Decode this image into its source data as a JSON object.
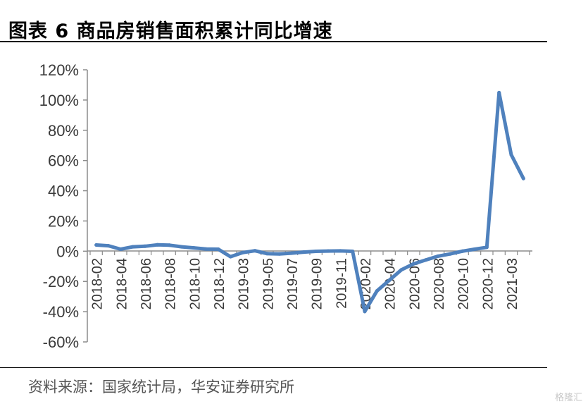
{
  "title": "图表 6  商品房销售面积累计同比增速",
  "source": "资料来源：国家统计局，华安证券研究所",
  "watermark": "格隆汇",
  "chart_data": {
    "type": "line",
    "title": "图表 6  商品房销售面积累计同比增速",
    "xlabel": "",
    "ylabel": "",
    "ylim": [
      -60,
      120
    ],
    "yticks": [
      -60,
      -40,
      -20,
      0,
      20,
      40,
      60,
      80,
      100,
      120
    ],
    "ytick_labels": [
      "-60%",
      "-40%",
      "-20%",
      "0%",
      "20%",
      "40%",
      "60%",
      "80%",
      "100%",
      "120%"
    ],
    "line_color": "#4f81bd",
    "grid": false,
    "legend": "none",
    "x": [
      "2018-02",
      "2018-03",
      "2018-04",
      "2018-05",
      "2018-06",
      "2018-07",
      "2018-08",
      "2018-09",
      "2018-10",
      "2018-11",
      "2018-12",
      "2019-02",
      "2019-03",
      "2019-04",
      "2019-05",
      "2019-06",
      "2019-07",
      "2019-08",
      "2019-09",
      "2019-10",
      "2019-11",
      "2019-12",
      "2020-02",
      "2020-03",
      "2020-04",
      "2020-05",
      "2020-06",
      "2020-07",
      "2020-08",
      "2020-09",
      "2020-10",
      "2020-11",
      "2020-12",
      "2021-02",
      "2021-03",
      "2021-04"
    ],
    "xtick_labels": [
      "2018-02",
      "2018-04",
      "2018-06",
      "2018-08",
      "2018-10",
      "2018-12",
      "2019-03",
      "2019-05",
      "2019-07",
      "2019-09",
      "2019-11",
      "2020-02",
      "2020-04",
      "2020-06",
      "2020-08",
      "2020-10",
      "2020-12",
      "2021-03"
    ],
    "values": [
      4.1,
      3.6,
      1.3,
      2.9,
      3.3,
      4.2,
      4.0,
      2.9,
      2.2,
      1.4,
      1.3,
      -3.6,
      -0.9,
      0.3,
      -1.6,
      -1.8,
      -1.3,
      -0.6,
      -0.1,
      0.1,
      0.2,
      -0.1,
      -39.9,
      -26.3,
      -19.3,
      -12.3,
      -8.4,
      -5.8,
      -3.3,
      -1.8,
      0.0,
      1.3,
      2.6,
      104.9,
      63.8,
      48.1
    ]
  }
}
